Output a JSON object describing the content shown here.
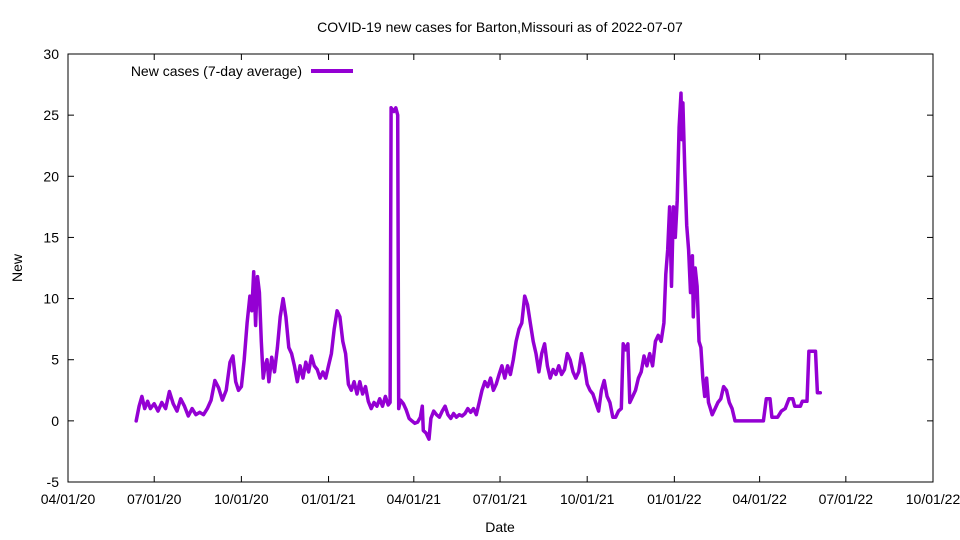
{
  "chart_data": {
    "type": "line",
    "title": "COVID-19 new cases for Barton,Missouri as of 2022-07-07",
    "xlabel": "Date",
    "ylabel": "New",
    "xlim": [
      "2020-04-01",
      "2022-10-01"
    ],
    "ylim": [
      -5,
      30
    ],
    "yticks": [
      -5,
      0,
      5,
      10,
      15,
      20,
      25,
      30
    ],
    "xticks": [
      {
        "date": "2020-04-01",
        "label": "04/01/20"
      },
      {
        "date": "2020-07-01",
        "label": "07/01/20"
      },
      {
        "date": "2020-10-01",
        "label": "10/01/20"
      },
      {
        "date": "2021-01-01",
        "label": "01/01/21"
      },
      {
        "date": "2021-04-01",
        "label": "04/01/21"
      },
      {
        "date": "2021-07-01",
        "label": "07/01/21"
      },
      {
        "date": "2021-10-01",
        "label": "10/01/21"
      },
      {
        "date": "2022-01-01",
        "label": "01/01/22"
      },
      {
        "date": "2022-04-01",
        "label": "04/01/22"
      },
      {
        "date": "2022-07-01",
        "label": "07/01/22"
      },
      {
        "date": "2022-10-01",
        "label": "10/01/22"
      }
    ],
    "grid": false,
    "legend_position": "top-left",
    "series": [
      {
        "name": "New cases (7-day average)",
        "color": "#9400d3",
        "points": [
          [
            "2020-06-12",
            0.0
          ],
          [
            "2020-06-15",
            1.2
          ],
          [
            "2020-06-18",
            2.0
          ],
          [
            "2020-06-21",
            1.0
          ],
          [
            "2020-06-24",
            1.6
          ],
          [
            "2020-06-27",
            1.0
          ],
          [
            "2020-07-01",
            1.4
          ],
          [
            "2020-07-05",
            0.8
          ],
          [
            "2020-07-09",
            1.5
          ],
          [
            "2020-07-13",
            1.0
          ],
          [
            "2020-07-17",
            2.4
          ],
          [
            "2020-07-21",
            1.4
          ],
          [
            "2020-07-25",
            0.8
          ],
          [
            "2020-07-29",
            1.8
          ],
          [
            "2020-08-02",
            1.2
          ],
          [
            "2020-08-06",
            0.4
          ],
          [
            "2020-08-10",
            1.0
          ],
          [
            "2020-08-14",
            0.5
          ],
          [
            "2020-08-18",
            0.7
          ],
          [
            "2020-08-22",
            0.5
          ],
          [
            "2020-08-26",
            1.0
          ],
          [
            "2020-08-30",
            1.7
          ],
          [
            "2020-09-03",
            3.3
          ],
          [
            "2020-09-07",
            2.7
          ],
          [
            "2020-09-11",
            1.7
          ],
          [
            "2020-09-15",
            2.5
          ],
          [
            "2020-09-19",
            4.8
          ],
          [
            "2020-09-22",
            5.3
          ],
          [
            "2020-09-25",
            3.2
          ],
          [
            "2020-09-28",
            2.5
          ],
          [
            "2020-10-01",
            2.8
          ],
          [
            "2020-10-04",
            5.0
          ],
          [
            "2020-10-07",
            8.0
          ],
          [
            "2020-10-10",
            10.2
          ],
          [
            "2020-10-12",
            9.0
          ],
          [
            "2020-10-14",
            12.2
          ],
          [
            "2020-10-16",
            7.8
          ],
          [
            "2020-10-18",
            11.8
          ],
          [
            "2020-10-20",
            10.5
          ],
          [
            "2020-10-22",
            6.5
          ],
          [
            "2020-10-24",
            3.5
          ],
          [
            "2020-10-26",
            4.5
          ],
          [
            "2020-10-28",
            5.0
          ],
          [
            "2020-10-30",
            3.2
          ],
          [
            "2020-11-02",
            5.2
          ],
          [
            "2020-11-05",
            4.0
          ],
          [
            "2020-11-08",
            6.0
          ],
          [
            "2020-11-11",
            8.5
          ],
          [
            "2020-11-14",
            10.0
          ],
          [
            "2020-11-17",
            8.5
          ],
          [
            "2020-11-20",
            6.0
          ],
          [
            "2020-11-23",
            5.5
          ],
          [
            "2020-11-26",
            4.5
          ],
          [
            "2020-11-29",
            3.2
          ],
          [
            "2020-12-02",
            4.5
          ],
          [
            "2020-12-05",
            3.5
          ],
          [
            "2020-12-08",
            4.8
          ],
          [
            "2020-12-11",
            4.0
          ],
          [
            "2020-12-14",
            5.3
          ],
          [
            "2020-12-17",
            4.5
          ],
          [
            "2020-12-20",
            4.2
          ],
          [
            "2020-12-23",
            3.5
          ],
          [
            "2020-12-26",
            4.0
          ],
          [
            "2020-12-29",
            3.5
          ],
          [
            "2021-01-01",
            4.5
          ],
          [
            "2021-01-04",
            5.5
          ],
          [
            "2021-01-07",
            7.5
          ],
          [
            "2021-01-10",
            9.0
          ],
          [
            "2021-01-13",
            8.5
          ],
          [
            "2021-01-16",
            6.5
          ],
          [
            "2021-01-19",
            5.5
          ],
          [
            "2021-01-22",
            3.0
          ],
          [
            "2021-01-25",
            2.5
          ],
          [
            "2021-01-28",
            3.2
          ],
          [
            "2021-01-31",
            2.2
          ],
          [
            "2021-02-03",
            3.2
          ],
          [
            "2021-02-06",
            2.2
          ],
          [
            "2021-02-09",
            2.8
          ],
          [
            "2021-02-12",
            1.6
          ],
          [
            "2021-02-15",
            1.0
          ],
          [
            "2021-02-18",
            1.5
          ],
          [
            "2021-02-21",
            1.2
          ],
          [
            "2021-02-24",
            1.8
          ],
          [
            "2021-02-27",
            1.2
          ],
          [
            "2021-03-02",
            2.0
          ],
          [
            "2021-03-05",
            1.3
          ],
          [
            "2021-03-07",
            1.5
          ],
          [
            "2021-03-08",
            25.6
          ],
          [
            "2021-03-11",
            25.3
          ],
          [
            "2021-03-13",
            25.6
          ],
          [
            "2021-03-15",
            25.0
          ],
          [
            "2021-03-16",
            1.0
          ],
          [
            "2021-03-18",
            1.7
          ],
          [
            "2021-03-21",
            1.4
          ],
          [
            "2021-03-24",
            0.9
          ],
          [
            "2021-03-27",
            0.2
          ],
          [
            "2021-03-30",
            0.0
          ],
          [
            "2021-04-02",
            -0.2
          ],
          [
            "2021-04-05",
            -0.1
          ],
          [
            "2021-04-08",
            0.3
          ],
          [
            "2021-04-10",
            1.2
          ],
          [
            "2021-04-11",
            -0.8
          ],
          [
            "2021-04-14",
            -1.0
          ],
          [
            "2021-04-17",
            -1.5
          ],
          [
            "2021-04-19",
            0.2
          ],
          [
            "2021-04-22",
            0.8
          ],
          [
            "2021-04-25",
            0.5
          ],
          [
            "2021-04-28",
            0.3
          ],
          [
            "2021-05-01",
            0.8
          ],
          [
            "2021-05-04",
            1.2
          ],
          [
            "2021-05-07",
            0.5
          ],
          [
            "2021-05-10",
            0.2
          ],
          [
            "2021-05-13",
            0.6
          ],
          [
            "2021-05-16",
            0.3
          ],
          [
            "2021-05-19",
            0.5
          ],
          [
            "2021-05-22",
            0.4
          ],
          [
            "2021-05-25",
            0.6
          ],
          [
            "2021-05-28",
            1.0
          ],
          [
            "2021-05-31",
            0.7
          ],
          [
            "2021-06-03",
            1.0
          ],
          [
            "2021-06-06",
            0.5
          ],
          [
            "2021-06-09",
            1.5
          ],
          [
            "2021-06-12",
            2.5
          ],
          [
            "2021-06-15",
            3.2
          ],
          [
            "2021-06-18",
            2.8
          ],
          [
            "2021-06-21",
            3.5
          ],
          [
            "2021-06-24",
            2.5
          ],
          [
            "2021-06-27",
            3.0
          ],
          [
            "2021-06-30",
            3.8
          ],
          [
            "2021-07-03",
            4.5
          ],
          [
            "2021-07-06",
            3.5
          ],
          [
            "2021-07-09",
            4.5
          ],
          [
            "2021-07-12",
            3.8
          ],
          [
            "2021-07-15",
            5.0
          ],
          [
            "2021-07-18",
            6.5
          ],
          [
            "2021-07-21",
            7.5
          ],
          [
            "2021-07-24",
            8.0
          ],
          [
            "2021-07-27",
            10.2
          ],
          [
            "2021-07-30",
            9.5
          ],
          [
            "2021-08-02",
            8.0
          ],
          [
            "2021-08-05",
            6.5
          ],
          [
            "2021-08-08",
            5.5
          ],
          [
            "2021-08-11",
            4.0
          ],
          [
            "2021-08-14",
            5.5
          ],
          [
            "2021-08-17",
            6.3
          ],
          [
            "2021-08-20",
            4.5
          ],
          [
            "2021-08-23",
            3.5
          ],
          [
            "2021-08-26",
            4.2
          ],
          [
            "2021-08-29",
            3.8
          ],
          [
            "2021-09-01",
            4.5
          ],
          [
            "2021-09-04",
            3.8
          ],
          [
            "2021-09-07",
            4.2
          ],
          [
            "2021-09-10",
            5.5
          ],
          [
            "2021-09-13",
            5.0
          ],
          [
            "2021-09-16",
            4.0
          ],
          [
            "2021-09-19",
            3.5
          ],
          [
            "2021-09-22",
            4.0
          ],
          [
            "2021-09-25",
            5.5
          ],
          [
            "2021-09-28",
            4.5
          ],
          [
            "2021-10-01",
            3.0
          ],
          [
            "2021-10-04",
            2.5
          ],
          [
            "2021-10-07",
            2.2
          ],
          [
            "2021-10-10",
            1.5
          ],
          [
            "2021-10-13",
            0.8
          ],
          [
            "2021-10-16",
            2.5
          ],
          [
            "2021-10-19",
            3.3
          ],
          [
            "2021-10-22",
            2.0
          ],
          [
            "2021-10-25",
            1.5
          ],
          [
            "2021-10-28",
            0.3
          ],
          [
            "2021-10-31",
            0.3
          ],
          [
            "2021-11-03",
            0.8
          ],
          [
            "2021-11-06",
            1.0
          ],
          [
            "2021-11-08",
            6.3
          ],
          [
            "2021-11-11",
            5.8
          ],
          [
            "2021-11-13",
            6.3
          ],
          [
            "2021-11-15",
            1.5
          ],
          [
            "2021-11-18",
            2.0
          ],
          [
            "2021-11-21",
            2.5
          ],
          [
            "2021-11-24",
            3.5
          ],
          [
            "2021-11-27",
            4.0
          ],
          [
            "2021-11-30",
            5.3
          ],
          [
            "2021-12-03",
            4.5
          ],
          [
            "2021-12-06",
            5.5
          ],
          [
            "2021-12-09",
            4.5
          ],
          [
            "2021-12-12",
            6.5
          ],
          [
            "2021-12-15",
            7.0
          ],
          [
            "2021-12-18",
            6.5
          ],
          [
            "2021-12-21",
            8.0
          ],
          [
            "2021-12-23",
            12.0
          ],
          [
            "2021-12-25",
            14.0
          ],
          [
            "2021-12-27",
            17.5
          ],
          [
            "2021-12-29",
            11.0
          ],
          [
            "2021-12-31",
            17.5
          ],
          [
            "2022-01-02",
            15.0
          ],
          [
            "2022-01-04",
            18.0
          ],
          [
            "2022-01-06",
            24.0
          ],
          [
            "2022-01-08",
            26.8
          ],
          [
            "2022-01-09",
            23.0
          ],
          [
            "2022-01-10",
            26.0
          ],
          [
            "2022-01-12",
            20.5
          ],
          [
            "2022-01-14",
            16.0
          ],
          [
            "2022-01-16",
            14.0
          ],
          [
            "2022-01-18",
            10.5
          ],
          [
            "2022-01-20",
            13.5
          ],
          [
            "2022-01-21",
            8.5
          ],
          [
            "2022-01-23",
            12.5
          ],
          [
            "2022-01-25",
            11.0
          ],
          [
            "2022-01-27",
            6.5
          ],
          [
            "2022-01-29",
            6.0
          ],
          [
            "2022-01-31",
            3.5
          ],
          [
            "2022-02-02",
            2.0
          ],
          [
            "2022-02-04",
            3.5
          ],
          [
            "2022-02-06",
            1.5
          ],
          [
            "2022-02-08",
            1.0
          ],
          [
            "2022-02-10",
            0.5
          ],
          [
            "2022-02-13",
            1.0
          ],
          [
            "2022-02-16",
            1.5
          ],
          [
            "2022-02-19",
            1.8
          ],
          [
            "2022-02-22",
            2.8
          ],
          [
            "2022-02-25",
            2.5
          ],
          [
            "2022-02-28",
            1.5
          ],
          [
            "2022-03-03",
            1.0
          ],
          [
            "2022-03-06",
            0.0
          ],
          [
            "2022-03-15",
            0.0
          ],
          [
            "2022-03-25",
            0.0
          ],
          [
            "2022-04-05",
            0.0
          ],
          [
            "2022-04-08",
            1.8
          ],
          [
            "2022-04-12",
            1.8
          ],
          [
            "2022-04-14",
            0.3
          ],
          [
            "2022-04-20",
            0.3
          ],
          [
            "2022-04-24",
            0.8
          ],
          [
            "2022-04-28",
            1.0
          ],
          [
            "2022-05-02",
            1.8
          ],
          [
            "2022-05-06",
            1.8
          ],
          [
            "2022-05-08",
            1.2
          ],
          [
            "2022-05-14",
            1.2
          ],
          [
            "2022-05-16",
            1.6
          ],
          [
            "2022-05-21",
            1.6
          ],
          [
            "2022-05-23",
            5.7
          ],
          [
            "2022-05-30",
            5.7
          ],
          [
            "2022-06-01",
            2.3
          ],
          [
            "2022-06-04",
            2.3
          ]
        ]
      }
    ]
  }
}
